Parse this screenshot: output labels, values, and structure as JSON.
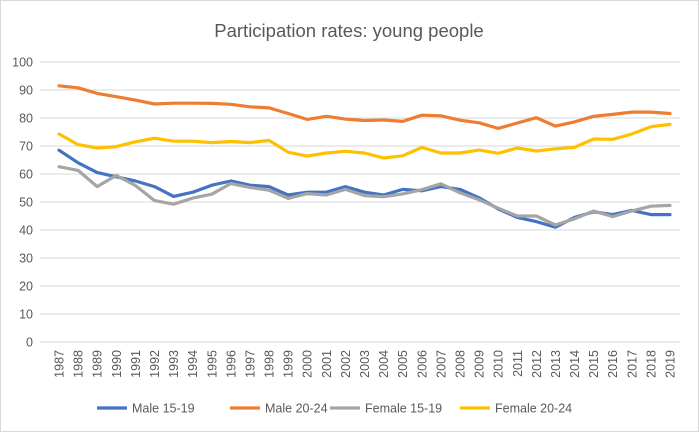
{
  "chart_data": {
    "type": "line",
    "title": "Participation rates: young people",
    "xlabel": "",
    "ylabel": "",
    "ylim": [
      0,
      100
    ],
    "yticks": [
      0,
      10,
      20,
      30,
      40,
      50,
      60,
      70,
      80,
      90,
      100
    ],
    "grid": true,
    "legend": "bottom",
    "x": [
      "1987",
      "1988",
      "1989",
      "1990",
      "1991",
      "1992",
      "1993",
      "1994",
      "1995",
      "1996",
      "1997",
      "1998",
      "1999",
      "2000",
      "2001",
      "2002",
      "2003",
      "2004",
      "2005",
      "2006",
      "2007",
      "2008",
      "2009",
      "2010",
      "2011",
      "2012",
      "2013",
      "2014",
      "2015",
      "2016",
      "2017",
      "2018",
      "2019"
    ],
    "series": [
      {
        "name": "Male 15-19",
        "color": "#4472c4",
        "values": [
          68.5,
          64,
          60.5,
          59,
          57.5,
          55.5,
          52,
          53.5,
          56,
          57.5,
          56,
          55.5,
          52.5,
          53.5,
          53.5,
          55.5,
          53.5,
          52.5,
          54.5,
          54,
          55.5,
          54.5,
          51.5,
          47.5,
          44.5,
          43,
          41,
          44.5,
          46.5,
          45.5,
          47,
          45.5,
          45.5
        ]
      },
      {
        "name": "Male 20-24",
        "color": "#ed7d31",
        "values": [
          91.5,
          90.8,
          88.8,
          87.6,
          86.4,
          85,
          85.3,
          85.3,
          85.2,
          84.9,
          84,
          83.6,
          81.6,
          79.5,
          80.6,
          79.6,
          79.1,
          79.3,
          78.8,
          81,
          80.8,
          79.2,
          78.3,
          76.3,
          78.2,
          80.1,
          77.1,
          78.6,
          80.6,
          81.3,
          82.1,
          82.1,
          81.6
        ]
      },
      {
        "name": "Female 15-19",
        "color": "#a5a5a5",
        "values": [
          62.6,
          61.3,
          55.5,
          59.5,
          55.9,
          50.5,
          49.2,
          51.4,
          52.8,
          56.6,
          55.2,
          54.2,
          51.3,
          53,
          52.5,
          54.5,
          52.3,
          51.9,
          52.9,
          54.4,
          56.5,
          53.3,
          50.8,
          47.8,
          45,
          45,
          41.8,
          44,
          46.8,
          44.8,
          46.8,
          48.5,
          48.8
        ]
      },
      {
        "name": "Female 20-24",
        "color": "#ffc000",
        "values": [
          74.3,
          70.5,
          69.3,
          69.8,
          71.5,
          72.8,
          71.7,
          71.7,
          71.2,
          71.6,
          71.2,
          72,
          67.8,
          66.4,
          67.5,
          68.1,
          67.5,
          65.7,
          66.5,
          69.5,
          67.5,
          67.5,
          68.6,
          67.4,
          69.3,
          68.2,
          69,
          69.5,
          72.5,
          72.4,
          74.3,
          76.9,
          77.7
        ]
      }
    ]
  }
}
